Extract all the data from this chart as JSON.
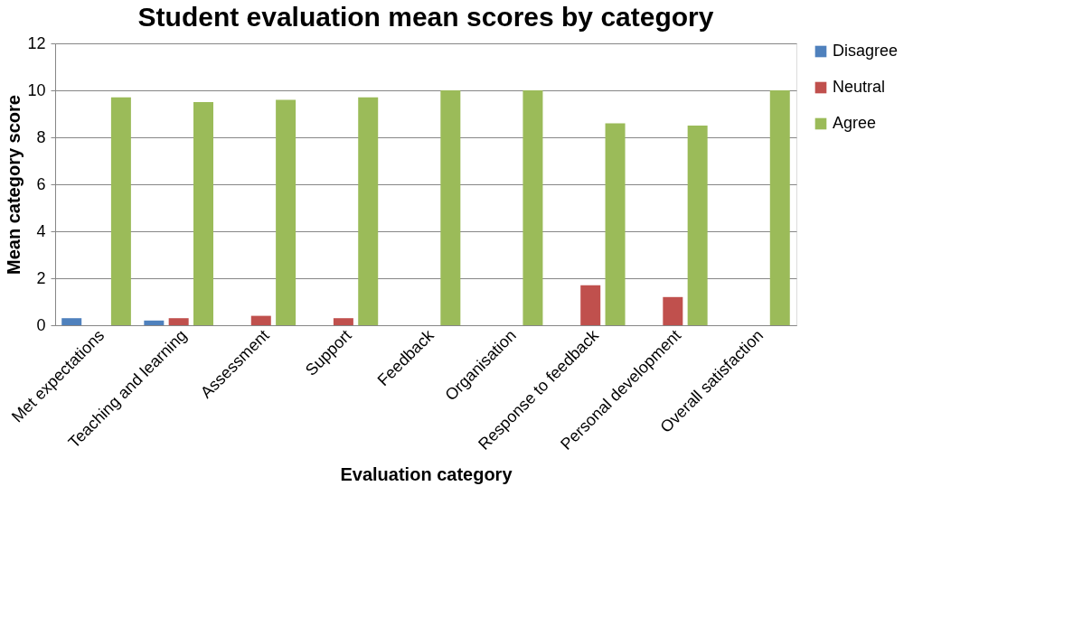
{
  "chart_data": {
    "type": "bar",
    "title": "Student evaluation mean scores by category",
    "xlabel": "Evaluation category",
    "ylabel": "Mean category score",
    "categories": [
      "Met expectations",
      "Teaching and learning",
      "Assessment",
      "Support",
      "Feedback",
      "Organisation",
      "Response to feedback",
      "Personal development",
      "Overall satisfaction"
    ],
    "series": [
      {
        "name": "Disagree",
        "color": "#4f81bd",
        "values": [
          0.3,
          0.2,
          null,
          null,
          null,
          null,
          null,
          null,
          null
        ]
      },
      {
        "name": "Neutral",
        "color": "#c0504d",
        "values": [
          null,
          0.3,
          0.4,
          0.3,
          null,
          null,
          1.7,
          1.2,
          null
        ]
      },
      {
        "name": "Agree",
        "color": "#9bbb59",
        "values": [
          9.7,
          9.5,
          9.6,
          9.7,
          10,
          10,
          8.6,
          8.5,
          10
        ]
      }
    ],
    "ylim": [
      0,
      12
    ],
    "yticks": [
      0,
      2,
      4,
      6,
      8,
      10,
      12
    ],
    "grid": "y",
    "legend": "right"
  }
}
